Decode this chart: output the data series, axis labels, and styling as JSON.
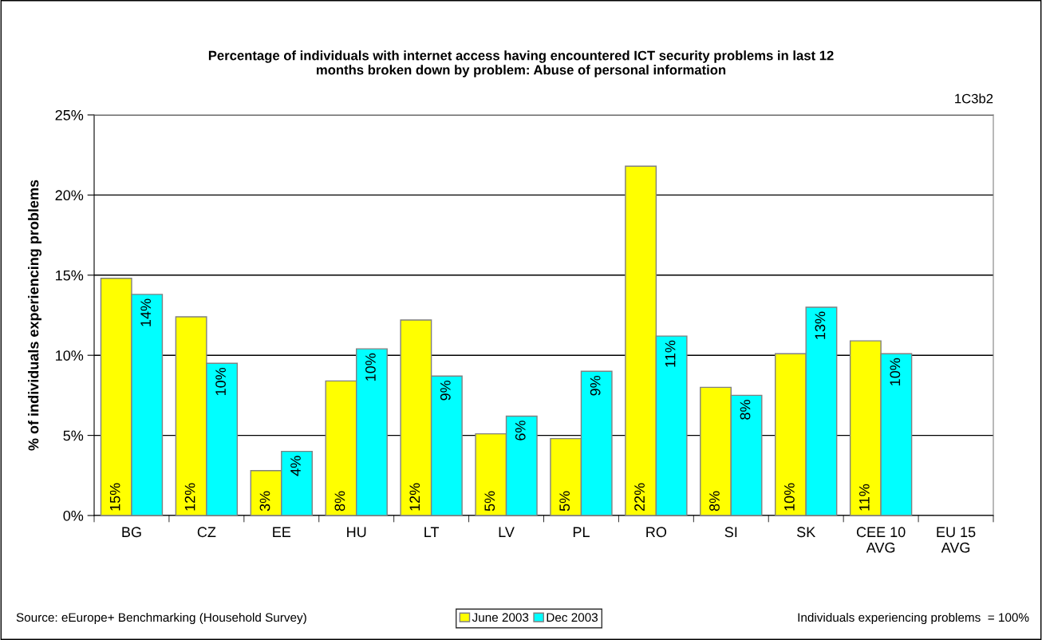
{
  "chart_data": {
    "type": "bar",
    "title": "Percentage of individuals with internet access having encountered ICT security problems in last 12\nmonths broken down by problem: Abuse of personal information",
    "ylabel": "% of individuals experiencing problems",
    "categories": [
      "BG",
      "CZ",
      "EE",
      "HU",
      "LT",
      "LV",
      "PL",
      "RO",
      "SI",
      "SK",
      "CEE 10\nAVG",
      "EU 15\nAVG"
    ],
    "series": [
      {
        "name": "June 2003",
        "color": "#ffff00",
        "values": [
          14.8,
          12.4,
          2.8,
          8.4,
          12.2,
          5.1,
          4.8,
          21.8,
          8.0,
          10.1,
          10.9,
          null
        ],
        "value_labels": [
          "15%",
          "12%",
          "3%",
          "8%",
          "12%",
          "5%",
          "5%",
          "22%",
          "8%",
          "10%",
          "11%",
          null
        ]
      },
      {
        "name": "Dec 2003",
        "color": "#00ffff",
        "values": [
          13.8,
          9.5,
          4.0,
          10.4,
          8.7,
          6.2,
          9.0,
          11.2,
          7.5,
          13.0,
          10.1,
          null
        ],
        "value_labels": [
          "14%",
          "10%",
          "4%",
          "10%",
          "9%",
          "6%",
          "9%",
          "11%",
          "8%",
          "13%",
          "10%",
          null
        ]
      }
    ],
    "ylim": [
      0,
      25
    ],
    "yticks": [
      {
        "value": 0,
        "label": "0%"
      },
      {
        "value": 5,
        "label": "5%"
      },
      {
        "value": 10,
        "label": "10%"
      },
      {
        "value": 15,
        "label": "15%"
      },
      {
        "value": 20,
        "label": "20%"
      },
      {
        "value": 25,
        "label": "25%"
      }
    ],
    "grid": "y",
    "legend": "bottom",
    "annotations": [
      "1C3b2",
      "Source: eEurope+ Benchmarking (Household Survey)",
      "Individuals experiencing problems  = 100%"
    ]
  }
}
